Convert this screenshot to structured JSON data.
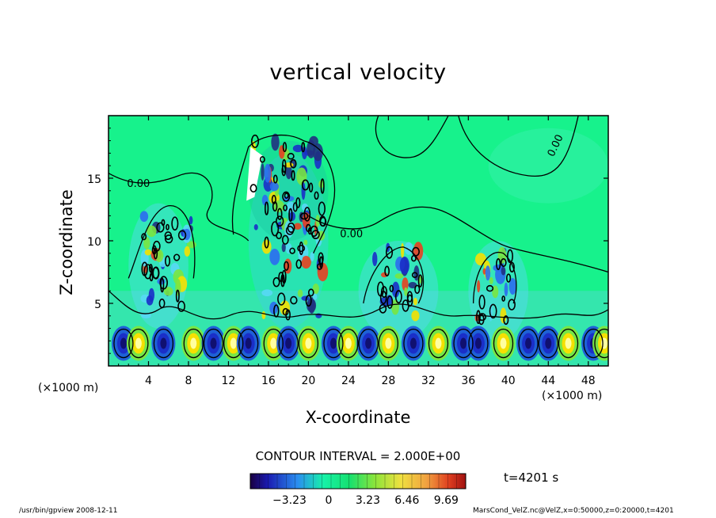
{
  "chart_data": {
    "type": "heatmap",
    "title": "vertical velocity",
    "xlabel": "X-coordinate",
    "ylabel": "Z-coordinate",
    "x_unit_left": "(×1000 m)",
    "x_unit_right": "(×1000 m)",
    "xlim": [
      0,
      50
    ],
    "ylim": [
      0,
      20
    ],
    "x_ticks": [
      4,
      8,
      12,
      16,
      20,
      24,
      28,
      32,
      36,
      40,
      44,
      48
    ],
    "y_ticks": [
      5,
      10,
      15
    ],
    "contour_labels": [
      {
        "text": "0.00",
        "x": 3,
        "y": 14.3
      },
      {
        "text": "0.00",
        "x": 24.3,
        "y": 10.3
      },
      {
        "text": "0.00",
        "x": 45.0,
        "y": 17.5
      }
    ],
    "contour_interval": "CONTOUR INTERVAL = 2.000E+00",
    "colorbar": {
      "ticks": [
        "−3.23",
        "0",
        "3.23",
        "6.46",
        "9.69"
      ],
      "tick_values": [
        -3.23,
        0,
        3.23,
        6.46,
        9.69
      ],
      "range": [
        -6.46,
        11.3
      ]
    },
    "colors": {
      "background_field": "#17f28c",
      "updraft": "#f5e000",
      "downdraft": "#1a2fc8",
      "light_blue": "#58d8f5",
      "green": "#7ae640"
    },
    "annotation_time": "t=4201 s",
    "footer_left": "/usr/bin/gpview    2008-12-11",
    "footer_right": "MarsCond_VelZ.nc@VelZ,x=0:50000,z=0:20000,t=4201"
  }
}
